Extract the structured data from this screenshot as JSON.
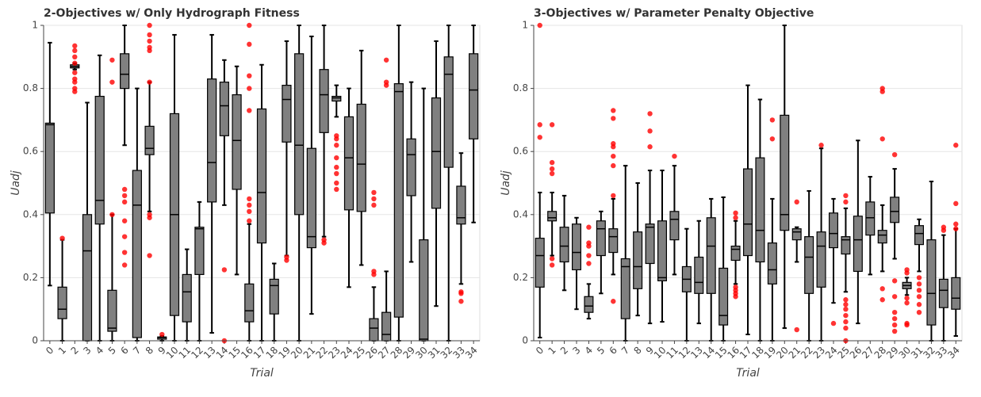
{
  "chart_data": [
    {
      "type": "box",
      "title": "2-Objectives w/ Only Hydrograph Fitness",
      "x_label": "Trial",
      "y_label": "Uadj",
      "box_color": "#808080",
      "outlier_color": "#ff0000",
      "grid": true,
      "ylim": [
        0,
        1
      ],
      "yticks": [
        0,
        0.2,
        0.4,
        0.6,
        0.8,
        1
      ],
      "categories": [
        "0",
        "1",
        "2",
        "3",
        "4",
        "5",
        "6",
        "7",
        "8",
        "9",
        "10",
        "11",
        "12",
        "13",
        "14",
        "15",
        "16",
        "17",
        "18",
        "19",
        "20",
        "21",
        "22",
        "23",
        "24",
        "25",
        "26",
        "27",
        "28",
        "29",
        "30",
        "31",
        "32",
        "33",
        "34"
      ],
      "boxes": [
        {
          "whislo": 0.175,
          "q1": 0.405,
          "med": 0.685,
          "q3": 0.69,
          "whishi": 0.945,
          "fliers": []
        },
        {
          "whislo": 0,
          "q1": 0.07,
          "med": 0.1,
          "q3": 0.17,
          "whishi": 0.32,
          "fliers": [
            0.325
          ]
        },
        {
          "whislo": 0.86,
          "q1": 0.865,
          "med": 0.87,
          "q3": 0.875,
          "whishi": 0.88,
          "fliers": [
            0.79,
            0.8,
            0.82,
            0.83,
            0.85,
            0.88,
            0.9,
            0.92,
            0.935
          ]
        },
        {
          "whislo": 0,
          "q1": 0,
          "med": 0.285,
          "q3": 0.4,
          "whishi": 0.755,
          "fliers": []
        },
        {
          "whislo": 0,
          "q1": 0.37,
          "med": 0.445,
          "q3": 0.775,
          "whishi": 0.905,
          "fliers": []
        },
        {
          "whislo": 0,
          "q1": 0.03,
          "med": 0.04,
          "q3": 0.16,
          "whishi": 0.4,
          "fliers": [
            0.4,
            0.82,
            0.89
          ]
        },
        {
          "whislo": 0.62,
          "q1": 0.8,
          "med": 0.845,
          "q3": 0.91,
          "whishi": 1,
          "fliers": [
            0.24,
            0.28,
            0.33,
            0.38,
            0.44,
            0.46,
            0.48
          ]
        },
        {
          "whislo": 0,
          "q1": 0.01,
          "med": 0.43,
          "q3": 0.54,
          "whishi": 0.8,
          "fliers": []
        },
        {
          "whislo": 0.41,
          "q1": 0.59,
          "med": 0.61,
          "q3": 0.68,
          "whishi": 0.82,
          "fliers": [
            0.27,
            0.39,
            0.4,
            0.82,
            0.92,
            0.93,
            0.95,
            0.97,
            1
          ]
        },
        {
          "whislo": 0,
          "q1": 0.005,
          "med": 0.01,
          "q3": 0.012,
          "whishi": 0.015,
          "fliers": [
            0.02
          ]
        },
        {
          "whislo": 0,
          "q1": 0.08,
          "med": 0.4,
          "q3": 0.72,
          "whishi": 0.97,
          "fliers": []
        },
        {
          "whislo": 0,
          "q1": 0.06,
          "med": 0.155,
          "q3": 0.21,
          "whishi": 0.29,
          "fliers": []
        },
        {
          "whislo": 0,
          "q1": 0.21,
          "med": 0.355,
          "q3": 0.36,
          "whishi": 0.44,
          "fliers": []
        },
        {
          "whislo": 0.025,
          "q1": 0.44,
          "med": 0.565,
          "q3": 0.83,
          "whishi": 0.97,
          "fliers": []
        },
        {
          "whislo": 0.43,
          "q1": 0.65,
          "med": 0.745,
          "q3": 0.82,
          "whishi": 0.89,
          "fliers": [
            0.225,
            0
          ]
        },
        {
          "whislo": 0.21,
          "q1": 0.48,
          "med": 0.635,
          "q3": 0.78,
          "whishi": 0.87,
          "fliers": []
        },
        {
          "whislo": 0,
          "q1": 0.06,
          "med": 0.095,
          "q3": 0.18,
          "whishi": 0.37,
          "fliers": [
            0.38,
            0.41,
            0.43,
            0.45,
            0.73,
            0.8,
            0.84,
            0.94,
            1
          ]
        },
        {
          "whislo": 0,
          "q1": 0.31,
          "med": 0.47,
          "q3": 0.735,
          "whishi": 0.875,
          "fliers": []
        },
        {
          "whislo": 0,
          "q1": 0.085,
          "med": 0.175,
          "q3": 0.195,
          "whishi": 0.245,
          "fliers": []
        },
        {
          "whislo": 0.27,
          "q1": 0.63,
          "med": 0.765,
          "q3": 0.81,
          "whishi": 0.95,
          "fliers": [
            0.255,
            0.265
          ]
        },
        {
          "whislo": 0,
          "q1": 0.4,
          "med": 0.62,
          "q3": 0.91,
          "whishi": 1,
          "fliers": []
        },
        {
          "whislo": 0.085,
          "q1": 0.295,
          "med": 0.33,
          "q3": 0.61,
          "whishi": 0.965,
          "fliers": []
        },
        {
          "whislo": 0.33,
          "q1": 0.66,
          "med": 0.78,
          "q3": 0.86,
          "whishi": 1,
          "fliers": [
            0.31,
            0.32
          ]
        },
        {
          "whislo": 0.71,
          "q1": 0.76,
          "med": 0.77,
          "q3": 0.775,
          "whishi": 0.81,
          "fliers": [
            0.48,
            0.5,
            0.53,
            0.55,
            0.58,
            0.62,
            0.64,
            0.65
          ]
        },
        {
          "whislo": 0.17,
          "q1": 0.415,
          "med": 0.58,
          "q3": 0.71,
          "whishi": 0.8,
          "fliers": []
        },
        {
          "whislo": 0.24,
          "q1": 0.41,
          "med": 0.56,
          "q3": 0.75,
          "whishi": 0.92,
          "fliers": []
        },
        {
          "whislo": 0,
          "q1": 0,
          "med": 0.04,
          "q3": 0.07,
          "whishi": 0.17,
          "fliers": [
            0.21,
            0.22,
            0.43,
            0.45,
            0.47
          ]
        },
        {
          "whislo": 0,
          "q1": 0,
          "med": 0.02,
          "q3": 0.09,
          "whishi": 0.22,
          "fliers": [
            0.81,
            0.82,
            0.89
          ]
        },
        {
          "whislo": 0,
          "q1": 0.075,
          "med": 0.79,
          "q3": 0.815,
          "whishi": 1,
          "fliers": []
        },
        {
          "whislo": 0.25,
          "q1": 0.46,
          "med": 0.59,
          "q3": 0.64,
          "whishi": 0.82,
          "fliers": []
        },
        {
          "whislo": 0,
          "q1": 0,
          "med": 0.005,
          "q3": 0.32,
          "whishi": 0.8,
          "fliers": []
        },
        {
          "whislo": 0.11,
          "q1": 0.42,
          "med": 0.6,
          "q3": 0.77,
          "whishi": 0.95,
          "fliers": []
        },
        {
          "whislo": 0,
          "q1": 0.55,
          "med": 0.845,
          "q3": 0.9,
          "whishi": 1,
          "fliers": []
        },
        {
          "whislo": 0.18,
          "q1": 0.37,
          "med": 0.39,
          "q3": 0.49,
          "whishi": 0.595,
          "fliers": [
            0.125,
            0.15,
            0.155
          ]
        },
        {
          "whislo": 0.375,
          "q1": 0.64,
          "med": 0.795,
          "q3": 0.91,
          "whishi": 1,
          "fliers": []
        }
      ]
    },
    {
      "type": "box",
      "title": "3-Objectives w/ Parameter Penalty Objective",
      "x_label": "Trial",
      "y_label": "Uadj",
      "box_color": "#808080",
      "outlier_color": "#ff0000",
      "grid": true,
      "ylim": [
        0,
        1
      ],
      "yticks": [
        0,
        0.2,
        0.4,
        0.6,
        0.8,
        1
      ],
      "categories": [
        "0",
        "1",
        "2",
        "3",
        "4",
        "5",
        "6",
        "7",
        "8",
        "9",
        "10",
        "11",
        "12",
        "13",
        "14",
        "15",
        "16",
        "17",
        "18",
        "19",
        "20",
        "21",
        "22",
        "23",
        "24",
        "25",
        "26",
        "27",
        "28",
        "29",
        "30",
        "31",
        "32",
        "33",
        "34"
      ],
      "boxes": [
        {
          "whislo": 0.01,
          "q1": 0.17,
          "med": 0.27,
          "q3": 0.325,
          "whishi": 0.47,
          "fliers": [
            0.645,
            0.685,
            1
          ]
        },
        {
          "whislo": 0.27,
          "q1": 0.38,
          "med": 0.39,
          "q3": 0.41,
          "whishi": 0.47,
          "fliers": [
            0.24,
            0.26,
            0.53,
            0.545,
            0.565,
            0.685
          ]
        },
        {
          "whislo": 0.16,
          "q1": 0.25,
          "med": 0.3,
          "q3": 0.36,
          "whishi": 0.46,
          "fliers": []
        },
        {
          "whislo": 0.1,
          "q1": 0.225,
          "med": 0.28,
          "q3": 0.37,
          "whishi": 0.39,
          "fliers": []
        },
        {
          "whislo": 0.07,
          "q1": 0.09,
          "med": 0.11,
          "q3": 0.14,
          "whishi": 0.18,
          "fliers": [
            0.245,
            0.27,
            0.3,
            0.31,
            0.36
          ]
        },
        {
          "whislo": 0.15,
          "q1": 0.27,
          "med": 0.355,
          "q3": 0.38,
          "whishi": 0.41,
          "fliers": []
        },
        {
          "whislo": 0.21,
          "q1": 0.28,
          "med": 0.33,
          "q3": 0.355,
          "whishi": 0.45,
          "fliers": [
            0.125,
            0.46,
            0.555,
            0.585,
            0.615,
            0.625,
            0.705,
            0.73
          ]
        },
        {
          "whislo": 0,
          "q1": 0.07,
          "med": 0.235,
          "q3": 0.26,
          "whishi": 0.555,
          "fliers": []
        },
        {
          "whislo": 0.08,
          "q1": 0.165,
          "med": 0.235,
          "q3": 0.345,
          "whishi": 0.5,
          "fliers": []
        },
        {
          "whislo": 0.055,
          "q1": 0.245,
          "med": 0.36,
          "q3": 0.37,
          "whishi": 0.54,
          "fliers": [
            0.615,
            0.665,
            0.72
          ]
        },
        {
          "whislo": 0.06,
          "q1": 0.19,
          "med": 0.2,
          "q3": 0.38,
          "whishi": 0.54,
          "fliers": []
        },
        {
          "whislo": 0.21,
          "q1": 0.32,
          "med": 0.385,
          "q3": 0.41,
          "whishi": 0.555,
          "fliers": [
            0.585
          ]
        },
        {
          "whislo": 0,
          "q1": 0.155,
          "med": 0.195,
          "q3": 0.235,
          "whishi": 0.355,
          "fliers": []
        },
        {
          "whislo": 0.055,
          "q1": 0.15,
          "med": 0.185,
          "q3": 0.265,
          "whishi": 0.38,
          "fliers": []
        },
        {
          "whislo": 0,
          "q1": 0.15,
          "med": 0.3,
          "q3": 0.39,
          "whishi": 0.45,
          "fliers": []
        },
        {
          "whislo": 0,
          "q1": 0.05,
          "med": 0.08,
          "q3": 0.23,
          "whishi": 0.455,
          "fliers": []
        },
        {
          "whislo": 0.18,
          "q1": 0.255,
          "med": 0.29,
          "q3": 0.3,
          "whishi": 0.38,
          "fliers": [
            0.14,
            0.15,
            0.16,
            0.17,
            0.39,
            0.405
          ]
        },
        {
          "whislo": 0.02,
          "q1": 0.27,
          "med": 0.37,
          "q3": 0.545,
          "whishi": 0.81,
          "fliers": []
        },
        {
          "whislo": 0,
          "q1": 0.25,
          "med": 0.35,
          "q3": 0.58,
          "whishi": 0.765,
          "fliers": []
        },
        {
          "whislo": 0,
          "q1": 0.18,
          "med": 0.225,
          "q3": 0.31,
          "whishi": 0.45,
          "fliers": [
            0.64,
            0.7
          ]
        },
        {
          "whislo": 0.04,
          "q1": 0.35,
          "med": 0.4,
          "q3": 0.715,
          "whishi": 1,
          "fliers": []
        },
        {
          "whislo": 0.25,
          "q1": 0.32,
          "med": 0.345,
          "q3": 0.355,
          "whishi": 0.36,
          "fliers": [
            0.035,
            0.44
          ]
        },
        {
          "whislo": 0,
          "q1": 0.15,
          "med": 0.265,
          "q3": 0.33,
          "whishi": 0.475,
          "fliers": []
        },
        {
          "whislo": 0,
          "q1": 0.17,
          "med": 0.3,
          "q3": 0.345,
          "whishi": 0.61,
          "fliers": [
            0.62
          ]
        },
        {
          "whislo": 0.12,
          "q1": 0.295,
          "med": 0.34,
          "q3": 0.405,
          "whishi": 0.45,
          "fliers": [
            0.055
          ]
        },
        {
          "whislo": 0.155,
          "q1": 0.275,
          "med": 0.32,
          "q3": 0.33,
          "whishi": 0.42,
          "fliers": [
            0,
            0.04,
            0.06,
            0.08,
            0.1,
            0.115,
            0.13,
            0.44,
            0.46
          ]
        },
        {
          "whislo": 0.055,
          "q1": 0.22,
          "med": 0.32,
          "q3": 0.395,
          "whishi": 0.635,
          "fliers": []
        },
        {
          "whislo": 0.21,
          "q1": 0.335,
          "med": 0.39,
          "q3": 0.44,
          "whishi": 0.52,
          "fliers": []
        },
        {
          "whislo": 0.22,
          "q1": 0.31,
          "med": 0.335,
          "q3": 0.35,
          "whishi": 0.43,
          "fliers": [
            0.13,
            0.165,
            0.64,
            0.79,
            0.8
          ]
        },
        {
          "whislo": 0.26,
          "q1": 0.375,
          "med": 0.41,
          "q3": 0.455,
          "whishi": 0.545,
          "fliers": [
            0.03,
            0.05,
            0.07,
            0.09,
            0.14,
            0.19,
            0.59
          ]
        },
        {
          "whislo": 0.145,
          "q1": 0.165,
          "med": 0.175,
          "q3": 0.185,
          "whishi": 0.2,
          "fliers": [
            0.05,
            0.055,
            0.12,
            0.135,
            0.215,
            0.225
          ]
        },
        {
          "whislo": 0.22,
          "q1": 0.305,
          "med": 0.34,
          "q3": 0.365,
          "whishi": 0.385,
          "fliers": [
            0.09,
            0.115,
            0.14,
            0.16,
            0.18,
            0.2
          ]
        },
        {
          "whislo": 0,
          "q1": 0.05,
          "med": 0.15,
          "q3": 0.32,
          "whishi": 0.505,
          "fliers": []
        },
        {
          "whislo": 0,
          "q1": 0.105,
          "med": 0.16,
          "q3": 0.195,
          "whishi": 0.335,
          "fliers": [
            0.35,
            0.36
          ]
        },
        {
          "whislo": 0.015,
          "q1": 0.1,
          "med": 0.135,
          "q3": 0.2,
          "whishi": 0.355,
          "fliers": [
            0.355,
            0.37,
            0.435,
            0.62
          ]
        }
      ]
    }
  ]
}
